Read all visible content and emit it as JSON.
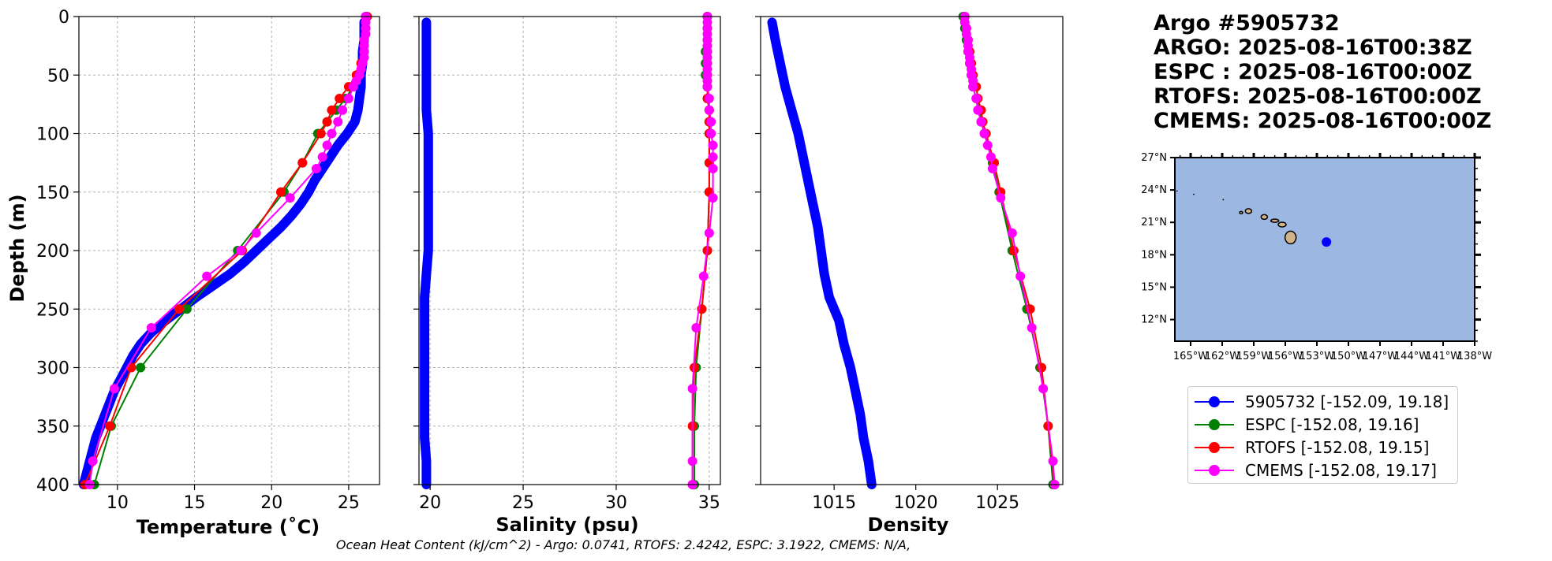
{
  "title_lines": [
    "Argo #5905732",
    "ARGO: 2025-08-16T00:38Z",
    "ESPC : 2025-08-16T00:00Z",
    "RTOFS: 2025-08-16T00:00Z",
    "CMEMS: 2025-08-16T00:00Z"
  ],
  "footer": "Ocean Heat Content (kJ/cm^2) - Argo: 0.0741,  RTOFS: 2.4242,  ESPC: 3.1922,  CMEMS: N/A,",
  "legend": [
    {
      "label": "5905732 [-152.09, 19.18]",
      "color": "#0000ff"
    },
    {
      "label": "ESPC [-152.08, 19.16]",
      "color": "#008000"
    },
    {
      "label": "RTOFS [-152.08, 19.15]",
      "color": "#ff0000"
    },
    {
      "label": "CMEMS [-152.08, 19.17]",
      "color": "#ff00ff"
    }
  ],
  "colors": {
    "argo": "#0000ff",
    "espc": "#008000",
    "rtofs": "#ff0000",
    "cmems": "#ff00ff",
    "ocean": "#9bb7e2",
    "land": "#d2b48c"
  },
  "chart_data": [
    {
      "type": "line",
      "xlabel": "Temperature (˚C)",
      "ylabel": "Depth (m)",
      "xlim": [
        7.5,
        27
      ],
      "ylim": [
        400,
        0
      ],
      "xticks": [
        10,
        15,
        20,
        25
      ],
      "yticks": [
        0,
        50,
        100,
        150,
        200,
        250,
        300,
        350,
        400
      ],
      "grid": true,
      "series": [
        {
          "name": "5905732",
          "key": "argo",
          "depth": [
            5,
            10,
            20,
            30,
            40,
            50,
            60,
            70,
            80,
            90,
            100,
            110,
            120,
            130,
            140,
            150,
            160,
            170,
            180,
            190,
            200,
            210,
            220,
            230,
            240,
            250,
            260,
            270,
            280,
            290,
            300,
            310,
            320,
            330,
            340,
            350,
            360,
            370,
            380,
            390,
            400
          ],
          "values": [
            26.0,
            26.0,
            26.0,
            25.9,
            25.9,
            25.8,
            25.8,
            25.7,
            25.6,
            25.4,
            24.9,
            24.3,
            23.8,
            23.3,
            22.8,
            22.4,
            21.9,
            21.3,
            20.6,
            19.8,
            19.0,
            18.2,
            17.3,
            16.2,
            15.1,
            14.1,
            13.1,
            12.2,
            11.5,
            11.0,
            10.6,
            10.2,
            9.8,
            9.5,
            9.2,
            8.9,
            8.6,
            8.4,
            8.2,
            8.0,
            7.8
          ]
        },
        {
          "name": "ESPC",
          "key": "espc",
          "depth": [
            0,
            10,
            20,
            30,
            40,
            50,
            60,
            70,
            80,
            90,
            100,
            125,
            150,
            200,
            250,
            300,
            350,
            400
          ],
          "values": [
            26.1,
            26.1,
            26.0,
            26.0,
            25.9,
            25.7,
            25.3,
            24.8,
            24.2,
            23.6,
            23.0,
            22.0,
            20.8,
            17.8,
            14.5,
            11.5,
            9.6,
            8.5
          ]
        },
        {
          "name": "RTOFS",
          "key": "rtofs",
          "depth": [
            0,
            10,
            20,
            30,
            40,
            50,
            60,
            70,
            80,
            90,
            100,
            125,
            150,
            200,
            250,
            300,
            350,
            400
          ],
          "values": [
            26.2,
            26.1,
            26.0,
            26.0,
            25.8,
            25.5,
            25.0,
            24.4,
            23.9,
            23.6,
            23.2,
            22.0,
            20.6,
            18.1,
            14.0,
            10.9,
            9.5,
            7.9
          ]
        },
        {
          "name": "CMEMS",
          "key": "cmems",
          "depth": [
            0,
            5,
            10,
            15,
            20,
            25,
            30,
            35,
            40,
            45,
            50,
            55,
            60,
            70,
            80,
            90,
            100,
            110,
            120,
            130,
            155,
            185,
            200,
            222,
            266,
            318,
            380,
            400
          ],
          "values": [
            26.1,
            26.1,
            26.1,
            26.1,
            26.0,
            26.0,
            26.0,
            26.0,
            25.9,
            25.8,
            25.7,
            25.5,
            25.3,
            25.0,
            24.6,
            24.3,
            23.9,
            23.6,
            23.3,
            22.9,
            21.2,
            19.0,
            18.0,
            15.8,
            12.2,
            9.8,
            8.4,
            8.2
          ]
        }
      ]
    },
    {
      "type": "line",
      "xlabel": "Salinity (psu)",
      "ylim": [
        400,
        0
      ],
      "xlim": [
        19.4,
        35.6
      ],
      "xticks": [
        20,
        25,
        30,
        35
      ],
      "grid": true,
      "series": [
        {
          "name": "5905732",
          "key": "argo",
          "depth": [
            5,
            20,
            40,
            60,
            80,
            100,
            120,
            140,
            160,
            180,
            200,
            220,
            240,
            260,
            280,
            300,
            320,
            340,
            360,
            380,
            400
          ],
          "values": [
            19.8,
            19.8,
            19.8,
            19.8,
            19.8,
            19.9,
            19.9,
            19.9,
            19.9,
            19.9,
            19.9,
            19.8,
            19.7,
            19.7,
            19.7,
            19.7,
            19.7,
            19.7,
            19.7,
            19.8,
            19.8
          ]
        },
        {
          "name": "ESPC",
          "key": "espc",
          "depth": [
            0,
            10,
            20,
            30,
            40,
            50,
            60,
            70,
            80,
            90,
            100,
            125,
            150,
            200,
            250,
            300,
            350,
            400
          ],
          "values": [
            34.9,
            34.9,
            34.9,
            34.8,
            34.8,
            34.8,
            34.9,
            34.9,
            35.0,
            35.0,
            35.0,
            35.0,
            35.0,
            34.9,
            34.6,
            34.3,
            34.2,
            34.2
          ]
        },
        {
          "name": "RTOFS",
          "key": "rtofs",
          "depth": [
            0,
            10,
            20,
            30,
            40,
            50,
            60,
            70,
            80,
            90,
            100,
            125,
            150,
            200,
            250,
            300,
            350,
            400
          ],
          "values": [
            34.9,
            34.9,
            34.9,
            34.9,
            34.9,
            34.9,
            34.9,
            34.9,
            35.0,
            35.0,
            35.0,
            35.0,
            35.0,
            34.9,
            34.6,
            34.2,
            34.1,
            34.1
          ]
        },
        {
          "name": "CMEMS",
          "key": "cmems",
          "depth": [
            0,
            5,
            10,
            15,
            20,
            25,
            30,
            35,
            40,
            45,
            50,
            55,
            60,
            70,
            80,
            90,
            100,
            110,
            120,
            130,
            155,
            185,
            222,
            266,
            318,
            380,
            400
          ],
          "values": [
            34.9,
            34.9,
            34.9,
            34.9,
            34.9,
            34.9,
            34.9,
            34.9,
            34.9,
            34.9,
            34.9,
            34.9,
            34.9,
            35.0,
            35.0,
            35.1,
            35.1,
            35.2,
            35.2,
            35.2,
            35.2,
            35.0,
            34.7,
            34.3,
            34.1,
            34.1,
            34.1
          ]
        }
      ]
    },
    {
      "type": "line",
      "xlabel": "Density",
      "ylim": [
        400,
        0
      ],
      "xlim": [
        1010.5,
        1029
      ],
      "xticks": [
        1015,
        1020,
        1025
      ],
      "grid": false,
      "series": [
        {
          "name": "5905732",
          "key": "argo",
          "depth": [
            5,
            20,
            40,
            60,
            80,
            100,
            120,
            140,
            160,
            180,
            200,
            220,
            240,
            260,
            280,
            300,
            320,
            340,
            360,
            380,
            400
          ],
          "values": [
            1011.2,
            1011.4,
            1011.7,
            1012.0,
            1012.4,
            1012.8,
            1013.1,
            1013.4,
            1013.7,
            1014.0,
            1014.2,
            1014.4,
            1014.7,
            1015.3,
            1015.6,
            1016.0,
            1016.3,
            1016.6,
            1016.8,
            1017.1,
            1017.3
          ]
        },
        {
          "name": "ESPC",
          "key": "espc",
          "depth": [
            0,
            10,
            20,
            30,
            40,
            50,
            60,
            70,
            80,
            90,
            100,
            125,
            150,
            200,
            250,
            300,
            350,
            400
          ],
          "values": [
            1022.9,
            1023.0,
            1023.1,
            1023.2,
            1023.3,
            1023.4,
            1023.5,
            1023.7,
            1023.9,
            1024.0,
            1024.2,
            1024.7,
            1025.1,
            1025.9,
            1026.8,
            1027.6,
            1028.1,
            1028.4
          ]
        },
        {
          "name": "RTOFS",
          "key": "rtofs",
          "depth": [
            0,
            10,
            20,
            30,
            40,
            50,
            60,
            70,
            80,
            90,
            100,
            125,
            150,
            200,
            250,
            300,
            350,
            400
          ],
          "values": [
            1023.0,
            1023.1,
            1023.2,
            1023.3,
            1023.4,
            1023.5,
            1023.7,
            1023.8,
            1024.0,
            1024.1,
            1024.3,
            1024.8,
            1025.2,
            1026.0,
            1027.0,
            1027.7,
            1028.1,
            1028.5
          ]
        },
        {
          "name": "CMEMS",
          "key": "cmems",
          "depth": [
            0,
            5,
            10,
            15,
            20,
            25,
            30,
            35,
            40,
            45,
            50,
            55,
            60,
            70,
            80,
            90,
            100,
            110,
            120,
            130,
            155,
            185,
            222,
            266,
            318,
            380,
            400
          ],
          "values": [
            1023.0,
            1023.0,
            1023.1,
            1023.1,
            1023.2,
            1023.2,
            1023.2,
            1023.3,
            1023.3,
            1023.4,
            1023.4,
            1023.5,
            1023.5,
            1023.7,
            1023.8,
            1024.0,
            1024.2,
            1024.4,
            1024.6,
            1024.7,
            1025.2,
            1025.9,
            1026.4,
            1027.1,
            1027.8,
            1028.4,
            1028.5
          ]
        }
      ]
    },
    {
      "type": "map",
      "lat_ticks": [
        "27°N",
        "24°N",
        "21°N",
        "18°N",
        "15°N",
        "12°N"
      ],
      "lon_ticks": [
        "165°W",
        "162°W",
        "159°W",
        "156°W",
        "153°W",
        "150°W",
        "147°W",
        "144°W",
        "141°W",
        "138°W"
      ],
      "lon_range": [
        -166.5,
        -138
      ],
      "lat_range": [
        10,
        27
      ],
      "float_position": {
        "lon": -152.09,
        "lat": 19.18
      }
    }
  ]
}
